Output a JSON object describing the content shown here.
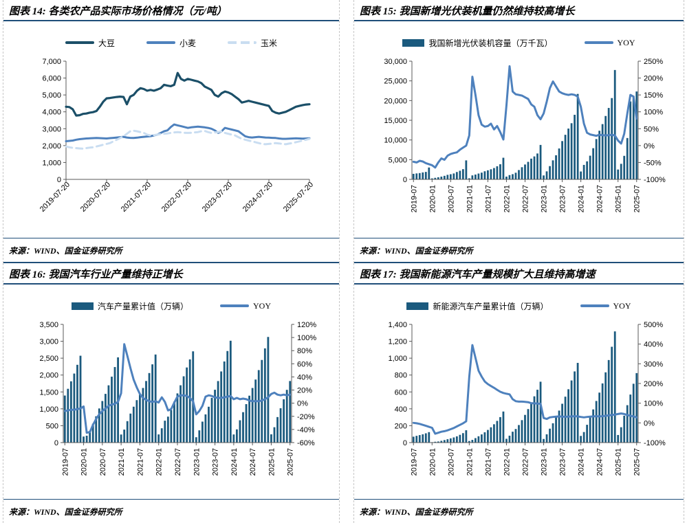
{
  "page": {
    "kind": "research-report-figure-grid"
  },
  "chart_data": [
    {
      "type": "line",
      "panel_title": "图表 14: 各类农产品实际市场价格情况（元/吨）",
      "source": "来源：WIND、国金证券研究所",
      "legend_position": "top-center",
      "left_axis": {
        "min": 0,
        "max": 7000,
        "step": 1000,
        "format": "thousands"
      },
      "x_tick_labels": [
        "2019-07-20",
        "2020-07-20",
        "2021-07-20",
        "2022-07-20",
        "2023-07-20",
        "2024-07-20",
        "2025-07-20"
      ],
      "x_tick_every": 12,
      "x_tick_rotation": -45,
      "x_range": [
        "2019-07-20",
        "2025-07-20"
      ],
      "grid": "off",
      "series": [
        {
          "name": "大豆",
          "color": "#1B4F68",
          "width": 3.2,
          "values": [
            4300,
            4280,
            4150,
            3780,
            3800,
            3880,
            3900,
            3950,
            3980,
            4050,
            4300,
            4600,
            4800,
            4820,
            4850,
            4880,
            4900,
            4880,
            4450,
            4900,
            5000,
            5250,
            5400,
            5350,
            5250,
            5300,
            5250,
            5320,
            5400,
            5600,
            5550,
            5520,
            5600,
            6300,
            5950,
            5850,
            5950,
            5900,
            5850,
            5800,
            5700,
            5500,
            5400,
            5300,
            5000,
            4900,
            5100,
            5200,
            5150,
            5050,
            4900,
            4750,
            4550,
            4600,
            4650,
            4600,
            4550,
            4500,
            4450,
            4400,
            4350,
            4050,
            3950,
            3900,
            3950,
            4000,
            4100,
            4200,
            4300,
            4350,
            4400,
            4430,
            4450
          ]
        },
        {
          "name": "小麦",
          "color": "#4E81BD",
          "width": 3,
          "values": [
            2260,
            2280,
            2300,
            2350,
            2380,
            2400,
            2420,
            2430,
            2440,
            2450,
            2440,
            2430,
            2420,
            2440,
            2460,
            2480,
            2500,
            2520,
            2480,
            2460,
            2450,
            2470,
            2500,
            2520,
            2540,
            2560,
            2600,
            2650,
            2750,
            2850,
            2900,
            3100,
            3250,
            3200,
            3150,
            3100,
            3050,
            3080,
            3100,
            3120,
            3100,
            3080,
            3050,
            3000,
            2900,
            2750,
            2850,
            3050,
            3000,
            2950,
            2900,
            2850,
            2700,
            2550,
            2500,
            2480,
            2500,
            2520,
            2500,
            2480,
            2470,
            2460,
            2450,
            2420,
            2400,
            2400,
            2410,
            2420,
            2430,
            2420,
            2410,
            2420,
            2430
          ]
        },
        {
          "name": "玉米",
          "color": "#C9DDF1",
          "width": 3,
          "dash": "9 6",
          "values": [
            1950,
            1900,
            1870,
            1850,
            1830,
            1820,
            1850,
            1880,
            1900,
            1950,
            2000,
            2050,
            2100,
            2150,
            2250,
            2350,
            2450,
            2550,
            2700,
            2850,
            2880,
            2850,
            2800,
            2750,
            2650,
            2600,
            2620,
            2650,
            2680,
            2700,
            2720,
            2750,
            2780,
            2800,
            2780,
            2760,
            2750,
            2760,
            2780,
            2800,
            2850,
            2870,
            2800,
            2750,
            2780,
            2800,
            2850,
            2750,
            2700,
            2650,
            2600,
            2500,
            2400,
            2350,
            2300,
            2250,
            2200,
            2150,
            2100,
            2080,
            2100,
            2120,
            2150,
            2130,
            2100,
            2080,
            2120,
            2150,
            2200,
            2250,
            2300,
            2350,
            2400
          ]
        }
      ]
    },
    {
      "type": "combo",
      "panel_title": "图表 15: 我国新增光伏装机量仍然维持较高增长",
      "source": "来源：WIND、国金证券研究所",
      "legend_position": "top-center",
      "left_axis": {
        "min": 0,
        "max": 30000,
        "step": 5000,
        "format": "thousands"
      },
      "right_axis": {
        "min": -100,
        "max": 250,
        "step": 50,
        "format": "percent"
      },
      "x_tick_labels": [
        "2019-07",
        "2020-01",
        "2020-07",
        "2021-01",
        "2021-07",
        "2022-01",
        "2022-07",
        "2023-01",
        "2023-07",
        "2024-01",
        "2024-07",
        "2025-01",
        "2025-07"
      ],
      "x_tick_every": 6,
      "x_tick_rotation": -90,
      "grid": "off",
      "bar_series": {
        "name": "我国新增光伏装机容量（万千瓦）",
        "color": "#1B5A7E",
        "values": [
          1405,
          1513,
          1599,
          1761,
          1894,
          3011,
          250,
          395,
          540,
          700,
          900,
          1152,
          1310,
          1500,
          1870,
          2190,
          2590,
          4820,
          275,
          1010,
          1225,
          1480,
          1710,
          2056,
          2300,
          2560,
          2880,
          3330,
          3841,
          5488,
          700,
          1086,
          1321,
          1688,
          2371,
          3088,
          3773,
          4447,
          5260,
          5824,
          6571,
          8741,
          1000,
          2037,
          3366,
          4831,
          6121,
          7842,
          9716,
          11316,
          12894,
          14251,
          16388,
          21688,
          2000,
          3672,
          4574,
          6011,
          7915,
          10229,
          12346,
          14026,
          16088,
          18130,
          20630,
          27757,
          2500,
          3947,
          5971,
          10493,
          19785,
          21221,
          22305
        ]
      },
      "line_series": {
        "name": "YOY",
        "color": "#4E81BD",
        "values": [
          -48,
          -50,
          -45,
          -47,
          -52,
          -55,
          -58,
          -65,
          -50,
          -38,
          -42,
          -30,
          -25,
          -22,
          -20,
          -12,
          -6,
          0,
          30,
          204,
          150,
          90,
          62,
          56,
          58,
          65,
          48,
          58,
          40,
          18,
          120,
          235,
          160,
          152,
          150,
          148,
          143,
          138,
          122,
          115,
          90,
          78,
          95,
          130,
          170,
          190,
          175,
          160,
          155,
          152,
          150,
          152,
          150,
          145,
          115,
          65,
          38,
          33,
          31,
          29,
          32,
          31,
          30,
          31,
          32,
          30,
          15,
          6,
          35,
          95,
          150,
          145,
          80
        ]
      }
    },
    {
      "type": "combo",
      "panel_title": "图表 16: 我国汽车行业产量维持正增长",
      "source": "来源：WIND、国金证券研究所",
      "legend_position": "top-center",
      "left_axis": {
        "min": 0,
        "max": 3500,
        "step": 500,
        "format": "thousands"
      },
      "right_axis": {
        "min": -60,
        "max": 120,
        "step": 20,
        "format": "percent"
      },
      "x_tick_labels": [
        "2019-07",
        "2020-01",
        "2020-07",
        "2021-01",
        "2021-07",
        "2022-01",
        "2022-07",
        "2023-01",
        "2023-07",
        "2024-01",
        "2024-07",
        "2025-01",
        "2025-07"
      ],
      "x_tick_every": 6,
      "x_tick_rotation": -90,
      "grid": "off",
      "bar_series": {
        "name": "汽车产量累计值（万辆）",
        "color": "#1B5A7E",
        "values": [
          1393,
          1593,
          1815,
          2044,
          2303,
          2572,
          179,
          204,
          347,
          559,
          779,
          1011,
          1231,
          1443,
          1696,
          1952,
          2237,
          2523,
          239,
          385,
          635,
          859,
          1063,
          1257,
          1444,
          1617,
          1824,
          2059,
          2317,
          2608,
          242,
          424,
          649,
          769,
          962,
          1212,
          1457,
          1697,
          1963,
          2224,
          2463,
          2702,
          159,
          363,
          621,
          835,
          1062,
          1325,
          1565,
          1822,
          2107,
          2402,
          2711,
          3016,
          241,
          392,
          661,
          901,
          1139,
          1389,
          1617,
          1867,
          2147,
          2447,
          2790,
          3128,
          245,
          455,
          756,
          1017,
          1282,
          1562,
          1823
        ]
      },
      "line_series": {
        "name": "YOY",
        "color": "#4E81BD",
        "values": [
          -12,
          -11,
          -10,
          -10,
          -9,
          -8,
          -5,
          -45,
          -44,
          -33,
          -24,
          -17,
          -12,
          -8,
          -4,
          -2,
          -1,
          2,
          15,
          90,
          72,
          53,
          36,
          24,
          14,
          8,
          5,
          3,
          2,
          3,
          1,
          9,
          2,
          -11,
          -9,
          1,
          10,
          12,
          12,
          11,
          8,
          3,
          -17,
          -12,
          -4,
          10,
          12,
          11,
          9,
          8,
          8,
          9,
          10,
          11,
          6,
          8,
          6,
          7,
          6,
          4,
          3,
          3,
          3,
          4,
          6,
          9,
          14,
          16,
          13,
          12,
          13,
          12,
          13
        ]
      }
    },
    {
      "type": "combo",
      "panel_title": "图表 17: 我国新能源汽车产量规模扩大且维持高增速",
      "source": "来源：WIND、国金证券研究所",
      "legend_position": "top-center",
      "left_axis": {
        "min": 0,
        "max": 1400,
        "step": 200,
        "format": "thousands"
      },
      "right_axis": {
        "min": -100,
        "max": 500,
        "step": 100,
        "format": "percent"
      },
      "x_tick_labels": [
        "2019-07",
        "2020-01",
        "2020-07",
        "2021-01",
        "2021-07",
        "2022-01",
        "2022-07",
        "2023-01",
        "2023-07",
        "2024-01",
        "2024-07",
        "2025-01",
        "2025-07"
      ],
      "x_tick_every": 6,
      "x_tick_rotation": -90,
      "grid": "off",
      "bar_series": {
        "name": "新能源汽车产量累计值（万辆）",
        "color": "#1B5A7E",
        "values": [
          70,
          80,
          89,
          98,
          110,
          124,
          5,
          10,
          13,
          21,
          30,
          40,
          50,
          61,
          74,
          92,
          112,
          146,
          19,
          32,
          53,
          75,
          97,
          122,
          150,
          181,
          217,
          257,
          302,
          368,
          45,
          82,
          129,
          161,
          208,
          266,
          328,
          397,
          472,
          548,
          626,
          721,
          43,
          98,
          165,
          229,
          300,
          379,
          460,
          544,
          632,
          736,
          843,
          944,
          79,
          125,
          211,
          299,
          393,
          493,
          592,
          701,
          832,
          978,
          1135,
          1317,
          90,
          182,
          318,
          443,
          569,
          697,
          823
        ]
      },
      "line_series": {
        "name": "YOY",
        "color": "#4E81BD",
        "values": [
          0,
          -2,
          -5,
          -10,
          -15,
          -20,
          -25,
          -55,
          -50,
          -45,
          -42,
          -38,
          -32,
          -26,
          -18,
          -10,
          -2,
          8,
          235,
          395,
          330,
          265,
          235,
          210,
          197,
          187,
          178,
          168,
          158,
          152,
          148,
          145,
          120,
          110,
          108,
          108,
          107,
          105,
          100,
          100,
          98,
          97,
          25,
          20,
          28,
          30,
          32,
          33,
          32,
          31,
          32,
          33,
          34,
          33,
          30,
          28,
          30,
          32,
          33,
          34,
          33,
          34,
          36,
          38,
          40,
          42,
          45,
          48,
          45,
          40,
          36,
          33,
          28
        ]
      }
    }
  ],
  "theme": {
    "rule_color": "#1F4E79",
    "axis_color": "#595959",
    "bar_color": "#1B5A7E",
    "yoy_line_color": "#4E81BD",
    "dashed_border_color": "#c6c6c6"
  }
}
